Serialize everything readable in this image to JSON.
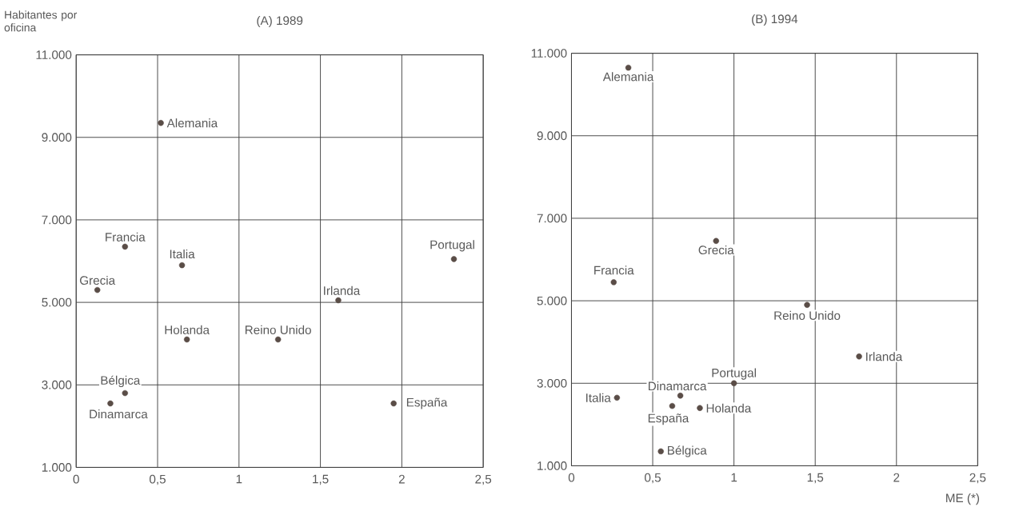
{
  "chart_data": [
    {
      "type": "scatter",
      "title": "(A)  1989",
      "ylabel": "Habitantes por oficina",
      "x": [
        0.52,
        0.3,
        0.65,
        0.13,
        2.32,
        1.61,
        0.68,
        1.24,
        0.3,
        0.21,
        1.95
      ],
      "values": [
        9350,
        6350,
        5900,
        5300,
        6050,
        5050,
        4100,
        4100,
        2800,
        2550,
        2550
      ],
      "color": "#5a4d47",
      "marker": "circle",
      "annotations": [
        {
          "text": "Alemania",
          "x": 0.52,
          "y": 9350
        },
        {
          "text": "Francia",
          "x": 0.3,
          "y": 6350
        },
        {
          "text": "Italia",
          "x": 0.65,
          "y": 5900
        },
        {
          "text": "Grecia",
          "x": 0.13,
          "y": 5300
        },
        {
          "text": "Portugal",
          "x": 2.32,
          "y": 6050
        },
        {
          "text": "Irlanda",
          "x": 1.61,
          "y": 5050
        },
        {
          "text": "Holanda",
          "x": 0.68,
          "y": 4100
        },
        {
          "text": "Reino Unido",
          "x": 1.24,
          "y": 4100
        },
        {
          "text": "Bélgica",
          "x": 0.3,
          "y": 2800
        },
        {
          "text": "Dinamarca",
          "x": 0.21,
          "y": 2550
        },
        {
          "text": "España",
          "x": 1.95,
          "y": 2550
        }
      ],
      "xlim": [
        0,
        2.5
      ],
      "ylim": [
        1000,
        11000
      ],
      "xticks": [
        0,
        {
          "value": 0.5,
          "label": "0,5"
        },
        1,
        {
          "value": 1.5,
          "label": "1,5"
        },
        2,
        {
          "value": 2.5,
          "label": "2,5"
        }
      ],
      "yticks": [
        {
          "value": 1000,
          "label": "1.000"
        },
        {
          "value": 3000,
          "label": "3.000"
        },
        {
          "value": 5000,
          "label": "5.000"
        },
        {
          "value": 7000,
          "label": "7.000"
        },
        {
          "value": 9000,
          "label": "9.000"
        },
        {
          "value": 11000,
          "label": "11.000"
        }
      ],
      "grid": true
    },
    {
      "type": "scatter",
      "title": "(B)  1994",
      "xlabel": "ME (*)",
      "x": [
        0.35,
        0.89,
        0.26,
        1.45,
        1.77,
        1.0,
        0.67,
        0.28,
        0.62,
        0.79,
        0.55
      ],
      "values": [
        10650,
        6450,
        5450,
        4900,
        3650,
        3000,
        2700,
        2650,
        2450,
        2400,
        1350
      ],
      "color": "#5a4d47",
      "marker": "circle",
      "annotations": [
        {
          "text": "Alemania",
          "x": 0.35,
          "y": 10650
        },
        {
          "text": "Grecia",
          "x": 0.89,
          "y": 6450
        },
        {
          "text": "Francia",
          "x": 0.26,
          "y": 5450
        },
        {
          "text": "Reino Unido",
          "x": 1.45,
          "y": 4900
        },
        {
          "text": "Irlanda",
          "x": 1.77,
          "y": 3650
        },
        {
          "text": "Portugal",
          "x": 1.0,
          "y": 3000
        },
        {
          "text": "Dinamarca",
          "x": 0.67,
          "y": 2700
        },
        {
          "text": "Italia",
          "x": 0.28,
          "y": 2650
        },
        {
          "text": "España",
          "x": 0.62,
          "y": 2450
        },
        {
          "text": "Holanda",
          "x": 0.79,
          "y": 2400
        },
        {
          "text": "Bélgica",
          "x": 0.55,
          "y": 1350
        }
      ],
      "xlim": [
        0,
        2.5
      ],
      "ylim": [
        1000,
        11000
      ],
      "xticks": [
        0,
        {
          "value": 0.5,
          "label": "0,5"
        },
        1,
        {
          "value": 1.5,
          "label": "1,5"
        },
        2,
        {
          "value": 2.5,
          "label": "2,5"
        }
      ],
      "yticks": [
        {
          "value": 1000,
          "label": "1.000"
        },
        {
          "value": 3000,
          "label": "3.000"
        },
        {
          "value": 5000,
          "label": "5.000"
        },
        {
          "value": 7000,
          "label": "7.000"
        },
        {
          "value": 9000,
          "label": "9.000"
        },
        {
          "value": 11000,
          "label": "11.000"
        }
      ],
      "grid": true
    }
  ]
}
